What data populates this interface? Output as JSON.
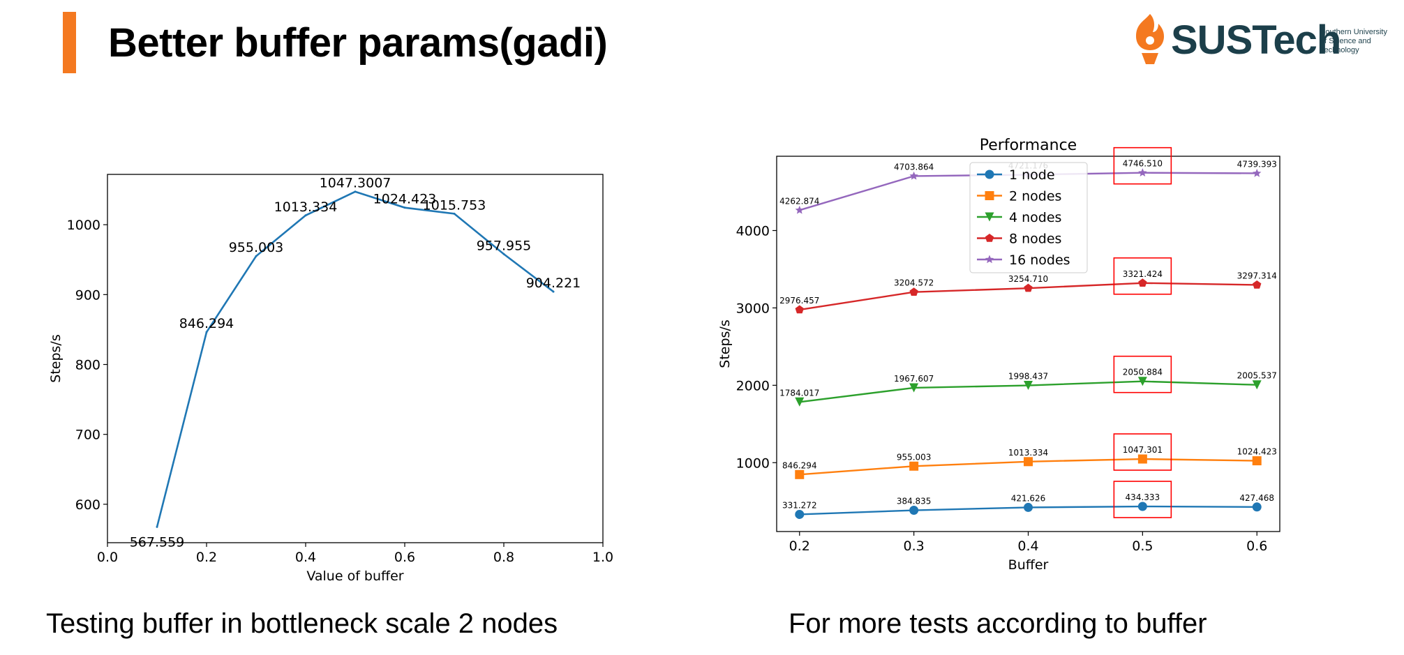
{
  "slide": {
    "title": "Better buffer params(gadi)",
    "accent_color": "#f47920",
    "logo": {
      "icon": "flame-torch-icon",
      "name": "SUSTech",
      "subtitle_lines": [
        "Southern University",
        "of Science and",
        "Technology"
      ]
    },
    "captions": {
      "left": "Testing buffer in bottleneck scale 2 nodes",
      "right": "For more tests according to buffer"
    }
  },
  "chart_data": [
    {
      "type": "line",
      "title": "",
      "xlabel": "Value of buffer",
      "ylabel": "Steps/s",
      "xlim": [
        0.0,
        1.0
      ],
      "ylim": [
        545,
        1072
      ],
      "xticks": [
        "0.0",
        "0.2",
        "0.4",
        "0.6",
        "0.8",
        "1.0"
      ],
      "yticks": [
        "600",
        "700",
        "800",
        "900",
        "1000"
      ],
      "grid": false,
      "color": "#1f77b4",
      "x": [
        0.1,
        0.2,
        0.3,
        0.4,
        0.5,
        0.6,
        0.7,
        0.8,
        0.9
      ],
      "values": [
        567.559,
        846.294,
        955.003,
        1013.334,
        1047.3007,
        1024.423,
        1015.753,
        957.955,
        904.221
      ],
      "data_labels": [
        "567.559",
        "846.294",
        "955.003",
        "1013.334",
        "1047.3007",
        "1024.423",
        "1015.753",
        "957.955",
        "904.221"
      ]
    },
    {
      "type": "line",
      "title": "Performance",
      "xlabel": "Buffer",
      "ylabel": "Steps/s",
      "xlim": [
        0.18,
        0.62
      ],
      "ylim": [
        110,
        4960
      ],
      "xticks": [
        "0.2",
        "0.3",
        "0.4",
        "0.5",
        "0.6"
      ],
      "yticks": [
        "1000",
        "2000",
        "3000",
        "4000"
      ],
      "grid": false,
      "legend_position": "top-center",
      "highlight_x": 0.5,
      "highlight_color": "#ff0000",
      "x": [
        0.2,
        0.3,
        0.4,
        0.5,
        0.6
      ],
      "series": [
        {
          "name": "1 node",
          "color": "#1f77b4",
          "marker": "circle",
          "values": [
            331.272,
            384.835,
            421.626,
            434.333,
            427.468
          ],
          "labels": [
            "331.272",
            "384.835",
            "421.626",
            "434.333",
            "427.468"
          ]
        },
        {
          "name": "2 nodes",
          "color": "#ff7f0e",
          "marker": "square",
          "values": [
            846.294,
            955.003,
            1013.334,
            1047.301,
            1024.423
          ],
          "labels": [
            "846.294",
            "955.003",
            "1013.334",
            "1047.301",
            "1024.423"
          ]
        },
        {
          "name": "4 nodes",
          "color": "#2ca02c",
          "marker": "triangle-down",
          "values": [
            1784.017,
            1967.607,
            1998.437,
            2050.884,
            2005.537
          ],
          "labels": [
            "1784.017",
            "1967.607",
            "1998.437",
            "2050.884",
            "2005.537"
          ]
        },
        {
          "name": "8 nodes",
          "color": "#d62728",
          "marker": "pentagon",
          "values": [
            2976.457,
            3204.572,
            3254.71,
            3321.424,
            3297.314
          ],
          "labels": [
            "2976.457",
            "3204.572",
            "3254.710",
            "3321.424",
            "3297.314"
          ]
        },
        {
          "name": "16 nodes",
          "color": "#9467bd",
          "marker": "star",
          "values": [
            4262.874,
            4703.864,
            4721.176,
            4746.51,
            4739.393
          ],
          "labels": [
            "4262.874",
            "4703.864",
            "4721.176",
            "4746.510",
            "4739.393"
          ]
        }
      ]
    }
  ]
}
